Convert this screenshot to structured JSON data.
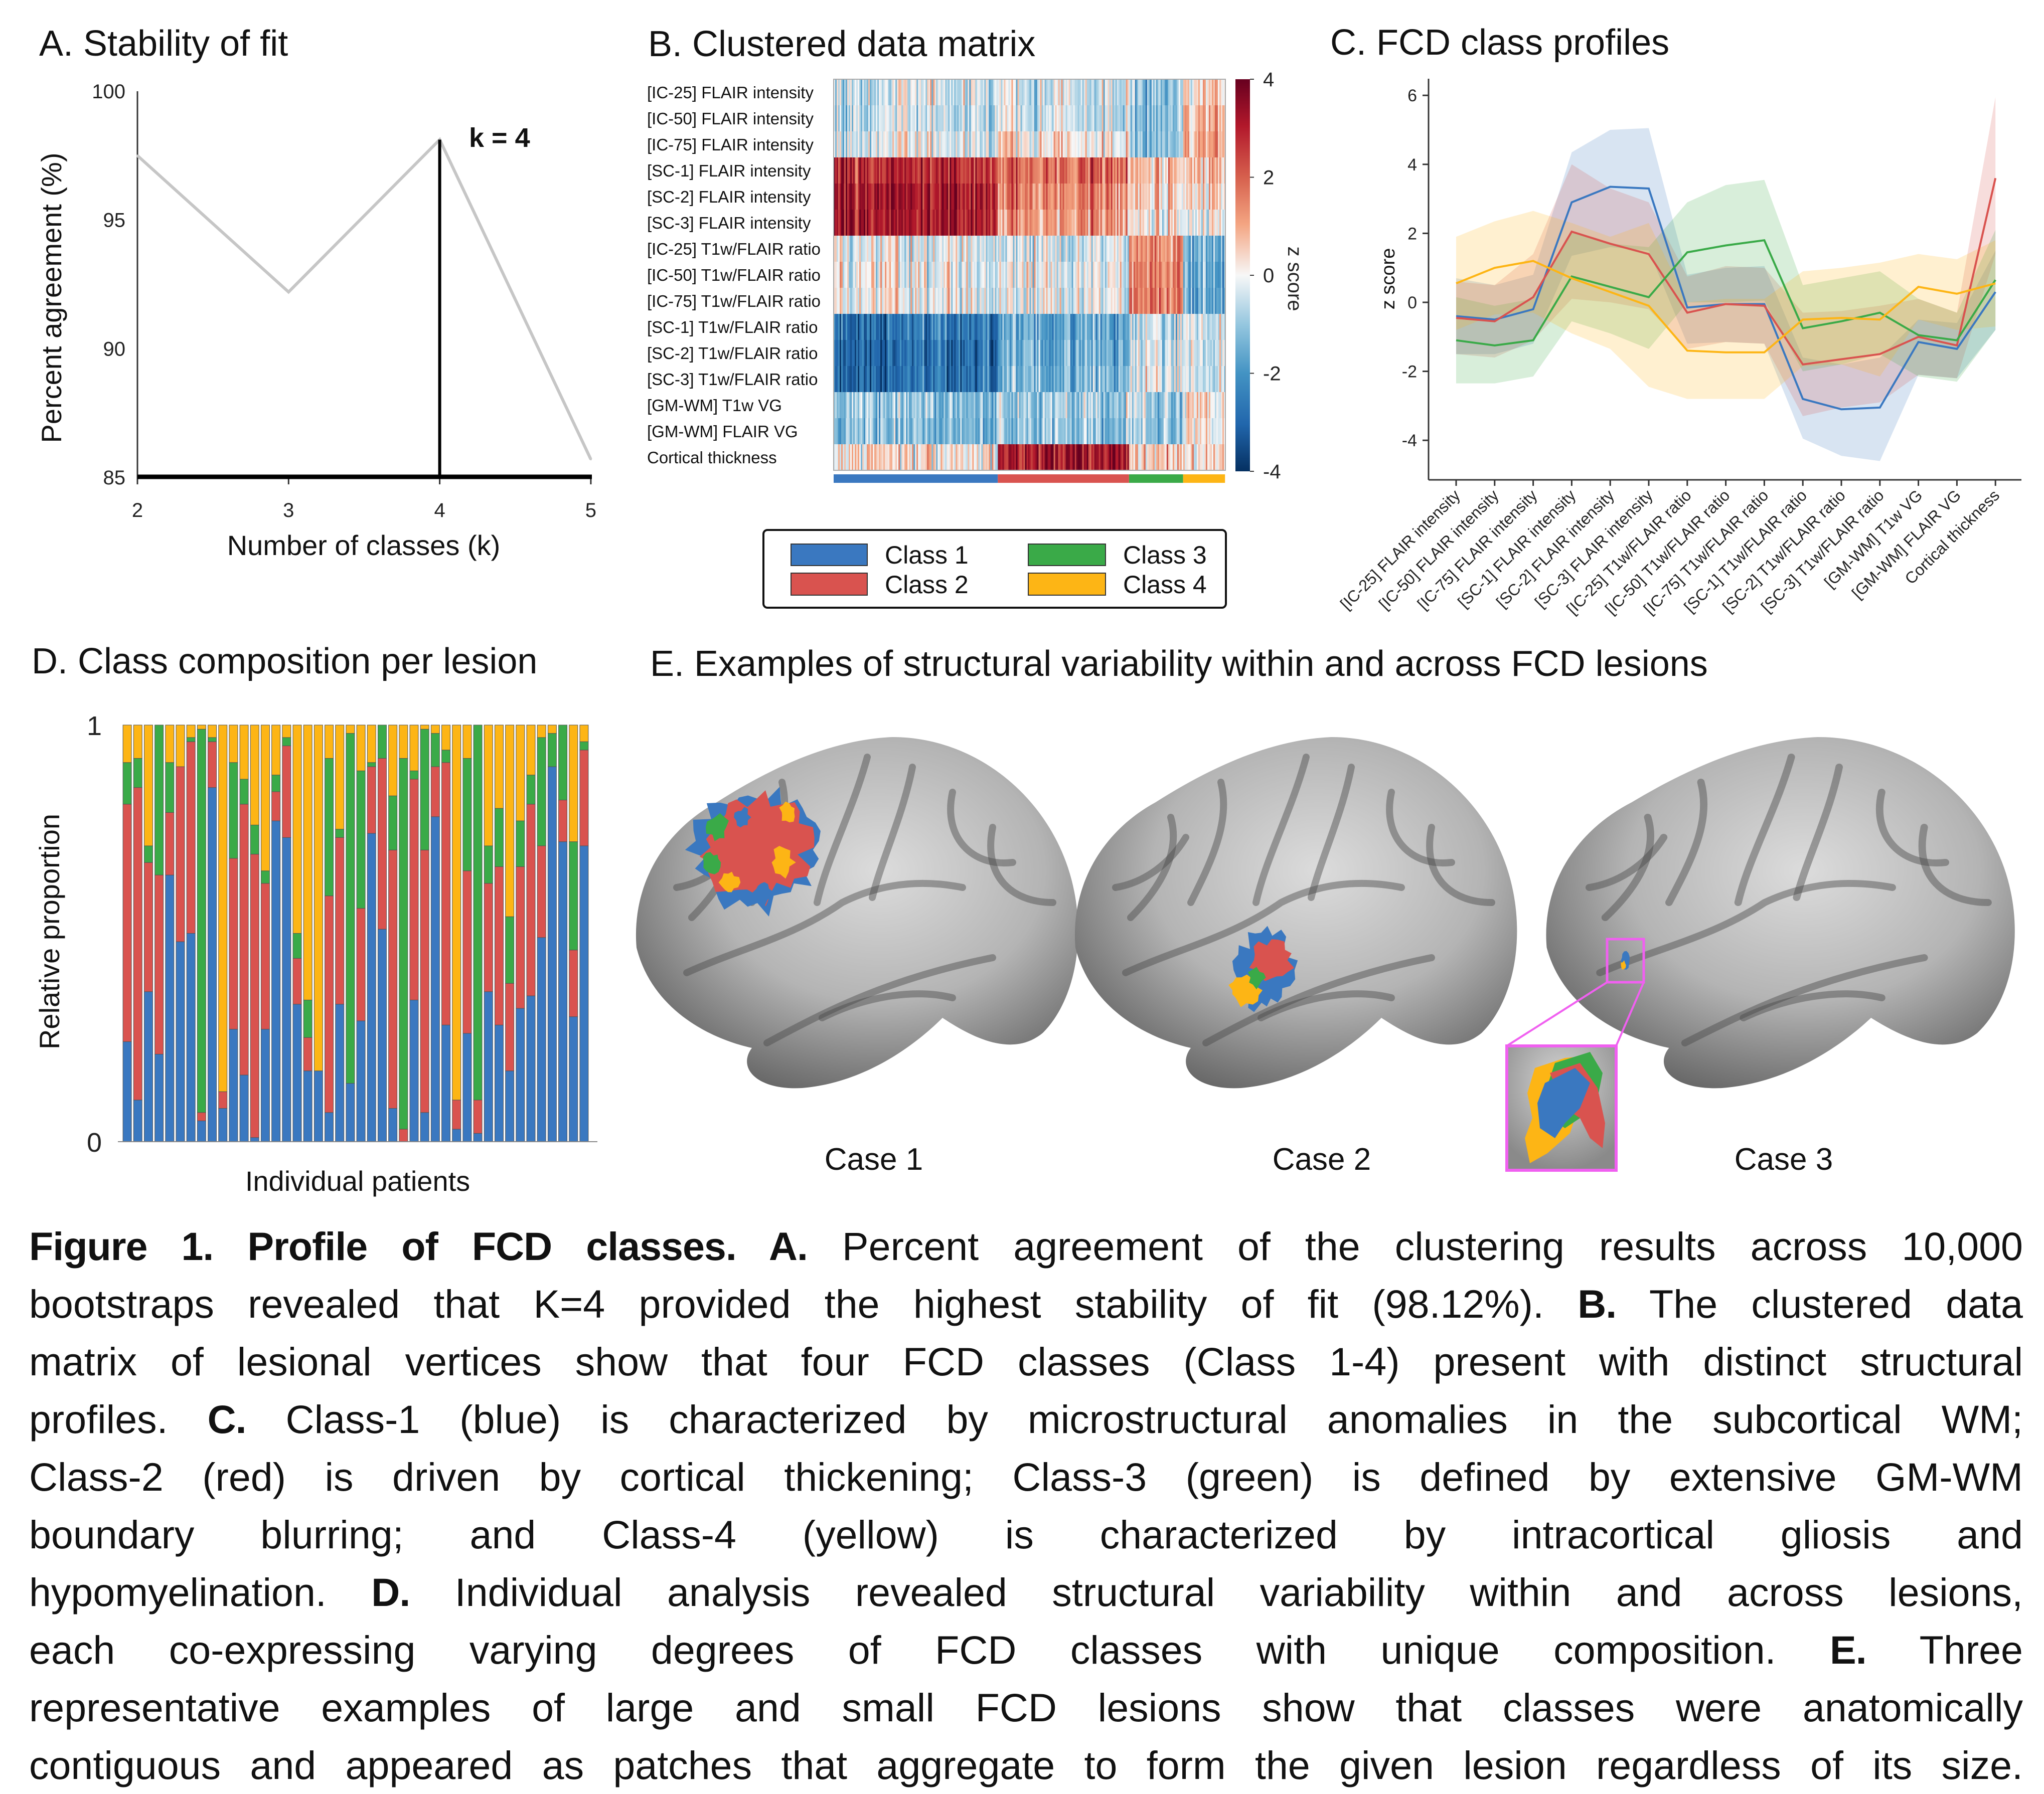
{
  "colors": {
    "class1": "#3a78c0",
    "class2": "#d9534f",
    "class3": "#3aaa48",
    "class4": "#fdb515",
    "inset": "#f060f0"
  },
  "panel_a": {
    "title": "A. Stability of fit",
    "annotation": "k = 4"
  },
  "panel_b": {
    "title": "B. Clustered data matrix",
    "legend": [
      "Class 1",
      "Class 2",
      "Class 3",
      "Class 4"
    ]
  },
  "panel_c": {
    "title": "C. FCD class profiles"
  },
  "panel_d": {
    "title": "D. Class composition per lesion"
  },
  "panel_e": {
    "title": "E. Examples of structural variability within and across FCD lesions",
    "cases": [
      "Case 1",
      "Case 2",
      "Case 3"
    ]
  },
  "chart_data": [
    {
      "panel": "A",
      "type": "line",
      "xlabel": "Number of classes (k)",
      "ylabel": "Percent agreement (%)",
      "x": [
        2,
        3,
        4,
        5
      ],
      "values": [
        97.5,
        92.2,
        98.12,
        85.7
      ],
      "xlim": [
        2,
        5
      ],
      "ylim": [
        85,
        100
      ],
      "xticks": [
        "2",
        "3",
        "4",
        "5"
      ],
      "yticks": [
        "100",
        "95",
        "90",
        "85"
      ],
      "highlight_x": 4,
      "grid": false
    },
    {
      "panel": "B",
      "type": "heatmap",
      "colorbar_label": "z score",
      "zlim": [
        -4,
        4
      ],
      "colorbar_ticks": [
        "4",
        "2",
        "0",
        "-2",
        "-4"
      ],
      "rows": [
        "[IC-25] FLAIR intensity",
        "[IC-50] FLAIR intensity",
        "[IC-75] FLAIR intensity",
        "[SC-1] FLAIR intensity",
        "[SC-2] FLAIR intensity",
        "[SC-3] FLAIR intensity",
        "[IC-25] T1w/FLAIR ratio",
        "[IC-50] T1w/FLAIR ratio",
        "[IC-75] T1w/FLAIR ratio",
        "[SC-1] T1w/FLAIR ratio",
        "[SC-2] T1w/FLAIR ratio",
        "[SC-3] T1w/FLAIR ratio",
        "[GM-WM] T1w VG",
        "[GM-WM] FLAIR VG",
        "Cortical thickness"
      ],
      "column_class_fractions": [
        0.419,
        0.335,
        0.138,
        0.107
      ]
    },
    {
      "panel": "C",
      "type": "line",
      "ylabel": "z score",
      "ylim": [
        -5.1,
        6.5
      ],
      "yticks": [
        "6",
        "4",
        "2",
        "0",
        "-2",
        "-4"
      ],
      "grid": false,
      "categories": [
        "[IC-25] FLAIR intensity",
        "[IC-50] FLAIR intensity",
        "[IC-75] FLAIR intensity",
        "[SC-1] FLAIR intensity",
        "[SC-2] FLAIR intensity",
        "[SC-3] FLAIR intensity",
        "[IC-25] T1w/FLAIR ratio",
        "[IC-50] T1w/FLAIR ratio",
        "[IC-75] T1w/FLAIR ratio",
        "[SC-1] T1w/FLAIR ratio",
        "[SC-2] T1w/FLAIR ratio",
        "[SC-3] T1w/FLAIR ratio",
        "[GM-WM] T1w VG",
        "[GM-WM] FLAIR VG",
        "Cortical thickness"
      ],
      "series": [
        {
          "name": "Class 1",
          "values": [
            -0.4,
            -0.5,
            -0.2,
            2.9,
            3.35,
            3.3,
            -0.15,
            -0.05,
            -0.05,
            -2.8,
            -3.1,
            -3.05,
            -1.15,
            -1.35,
            0.3
          ],
          "upper": [
            0.7,
            0.5,
            0.8,
            4.35,
            5.0,
            5.05,
            0.8,
            1.0,
            1.05,
            -1.6,
            -1.8,
            -1.6,
            -0.5,
            -0.6,
            1.5
          ],
          "lower": [
            -1.5,
            -1.5,
            -1.2,
            1.35,
            1.6,
            1.5,
            -1.2,
            -1.15,
            -1.2,
            -3.95,
            -4.45,
            -4.6,
            -2.1,
            -2.2,
            -0.8
          ]
        },
        {
          "name": "Class 2",
          "values": [
            -0.45,
            -0.55,
            0.15,
            2.05,
            1.7,
            1.4,
            -0.3,
            -0.05,
            -0.1,
            -1.8,
            -1.65,
            -1.5,
            -1.0,
            -1.25,
            3.6
          ],
          "upper": [
            0.6,
            0.5,
            1.4,
            4.0,
            3.3,
            2.9,
            0.75,
            1.05,
            1.0,
            -0.3,
            -0.25,
            -0.1,
            0.1,
            -0.3,
            5.95
          ],
          "lower": [
            -1.5,
            -1.6,
            -1.1,
            0.1,
            0.0,
            -0.2,
            -1.35,
            -1.15,
            -1.2,
            -3.3,
            -3.05,
            -2.9,
            -2.1,
            -2.2,
            1.4
          ]
        },
        {
          "name": "Class 3",
          "values": [
            -1.1,
            -1.25,
            -1.1,
            0.75,
            0.45,
            0.15,
            1.45,
            1.65,
            1.8,
            -0.75,
            -0.55,
            -0.3,
            -0.95,
            -1.1,
            0.65
          ],
          "upper": [
            0.15,
            -0.1,
            0.1,
            2.05,
            1.7,
            1.6,
            2.9,
            3.4,
            3.55,
            0.5,
            0.7,
            0.9,
            0.1,
            -0.3,
            2.1
          ],
          "lower": [
            -2.35,
            -2.35,
            -2.15,
            -0.55,
            -0.9,
            -1.35,
            0.0,
            0.0,
            0.05,
            -2.0,
            -1.8,
            -1.5,
            -2.15,
            -2.3,
            -0.8
          ]
        },
        {
          "name": "Class 4",
          "values": [
            0.55,
            1.0,
            1.2,
            0.7,
            0.3,
            -0.1,
            -1.4,
            -1.45,
            -1.45,
            -0.5,
            -0.45,
            -0.5,
            0.45,
            0.25,
            0.55
          ],
          "upper": [
            1.9,
            2.35,
            2.65,
            2.3,
            1.9,
            2.3,
            0.0,
            0.1,
            0.1,
            0.9,
            1.0,
            1.15,
            1.4,
            1.25,
            1.8
          ],
          "lower": [
            -0.8,
            -0.35,
            -0.3,
            -0.9,
            -1.35,
            -2.45,
            -2.8,
            -2.8,
            -2.8,
            -1.85,
            -1.8,
            -2.15,
            -0.5,
            -0.8,
            -0.7
          ]
        }
      ]
    },
    {
      "panel": "D",
      "type": "bar",
      "stacked": true,
      "xlabel": "Individual patients",
      "ylabel": "Relative proportion",
      "ylim": [
        0,
        1
      ],
      "yticks": [
        "1",
        "0"
      ],
      "series": [
        {
          "name": "Class 1",
          "values": [
            0.24,
            0.1,
            0.36,
            0.21,
            0.64,
            0.48,
            0.5,
            0.05,
            0.85,
            0.08,
            0.27,
            0.16,
            0.01,
            0.27,
            0.77,
            0.73,
            0.33,
            0.17,
            0.17,
            0.07,
            0.33,
            0.14,
            0.29,
            0.74,
            0.51,
            0.08,
            0,
            0.34,
            0.07,
            0.78,
            0.28,
            0.03,
            0.26,
            0.02,
            0.36,
            0.28,
            0.17,
            0.32,
            0.35,
            0.49,
            0.9,
            0.72,
            0.3,
            0.71
          ]
        },
        {
          "name": "Class 2",
          "values": [
            0.57,
            0.75,
            0.31,
            0.43,
            0.15,
            0.42,
            0.46,
            0.02,
            0.11,
            0.04,
            0.41,
            0.65,
            0.68,
            0.35,
            0.07,
            0.22,
            0.11,
            0.08,
            0,
            0.52,
            0.4,
            0,
            0.27,
            0.16,
            0.41,
            0.62,
            0.03,
            0.53,
            0.63,
            0.12,
            0.63,
            0.07,
            0.39,
            0.08,
            0.26,
            0.38,
            0.21,
            0.34,
            0.46,
            0.22,
            0,
            0.1,
            0.16,
            0.23
          ]
        },
        {
          "name": "Class 3",
          "values": [
            0.1,
            0.07,
            0.04,
            0.36,
            0.12,
            0,
            0.01,
            0.92,
            0.01,
            0,
            0.23,
            0.06,
            0.07,
            0.03,
            0.04,
            0.02,
            0.06,
            0.09,
            0,
            0.33,
            0.02,
            0.84,
            0.33,
            0.01,
            0.08,
            0.13,
            0.89,
            0.02,
            0.29,
            0.08,
            0.03,
            0,
            0.27,
            0.9,
            0.09,
            0.14,
            0.16,
            0.11,
            0.07,
            0.26,
            0.08,
            0.18,
            0.26,
            0.02
          ]
        },
        {
          "name": "Class 4",
          "values": [
            0.09,
            0.08,
            0.29,
            0,
            0.09,
            0.1,
            0.03,
            0.01,
            0.03,
            0.88,
            0.09,
            0.13,
            0.24,
            0.35,
            0.12,
            0.03,
            0.5,
            0.66,
            0.83,
            0.08,
            0.25,
            0.02,
            0.11,
            0.09,
            0,
            0.17,
            0.08,
            0.11,
            0.01,
            0.02,
            0.06,
            0.9,
            0.08,
            0,
            0.29,
            0.2,
            0.46,
            0.23,
            0.12,
            0.03,
            0.02,
            0,
            0.28,
            0.04
          ]
        }
      ]
    }
  ],
  "caption_lines": [
    [
      {
        "t": "Figure 1. Profile of FCD classes. A.",
        "b": true
      },
      {
        "t": " Percent agreement of the clustering results across 10,000",
        "b": false
      }
    ],
    [
      {
        "t": "bootstraps revealed that K=4 provided the highest stability of fit (98.12%). ",
        "b": false
      },
      {
        "t": "B.",
        "b": true
      },
      {
        "t": " The clustered data",
        "b": false
      }
    ],
    [
      {
        "t": "matrix of lesional vertices show that four FCD classes (Class 1-4) present with distinct structural",
        "b": false
      }
    ],
    [
      {
        "t": "profiles. ",
        "b": false
      },
      {
        "t": "C.",
        "b": true
      },
      {
        "t": " Class-1 (blue) is characterized by microstructural anomalies in the subcortical WM;",
        "b": false
      }
    ],
    [
      {
        "t": "Class-2 (red) is driven by cortical thickening; Class-3 (green) is defined by extensive GM-WM",
        "b": false
      }
    ],
    [
      {
        "t": "boundary blurring; and Class-4 (yellow) is characterized by intracortical gliosis and",
        "b": false
      }
    ],
    [
      {
        "t": "hypomyelination. ",
        "b": false
      },
      {
        "t": "D.",
        "b": true
      },
      {
        "t": " Individual analysis revealed structural variability within and across lesions,",
        "b": false
      }
    ],
    [
      {
        "t": "each co-expressing varying degrees of FCD classes with unique composition. ",
        "b": false
      },
      {
        "t": "E.",
        "b": true
      },
      {
        "t": " Three",
        "b": false
      }
    ],
    [
      {
        "t": "representative examples of large and small FCD lesions show that classes were anatomically",
        "b": false
      }
    ],
    [
      {
        "t": "contiguous and appeared as patches that aggregate to form the given lesion regardless of its size.",
        "b": false
      }
    ]
  ]
}
